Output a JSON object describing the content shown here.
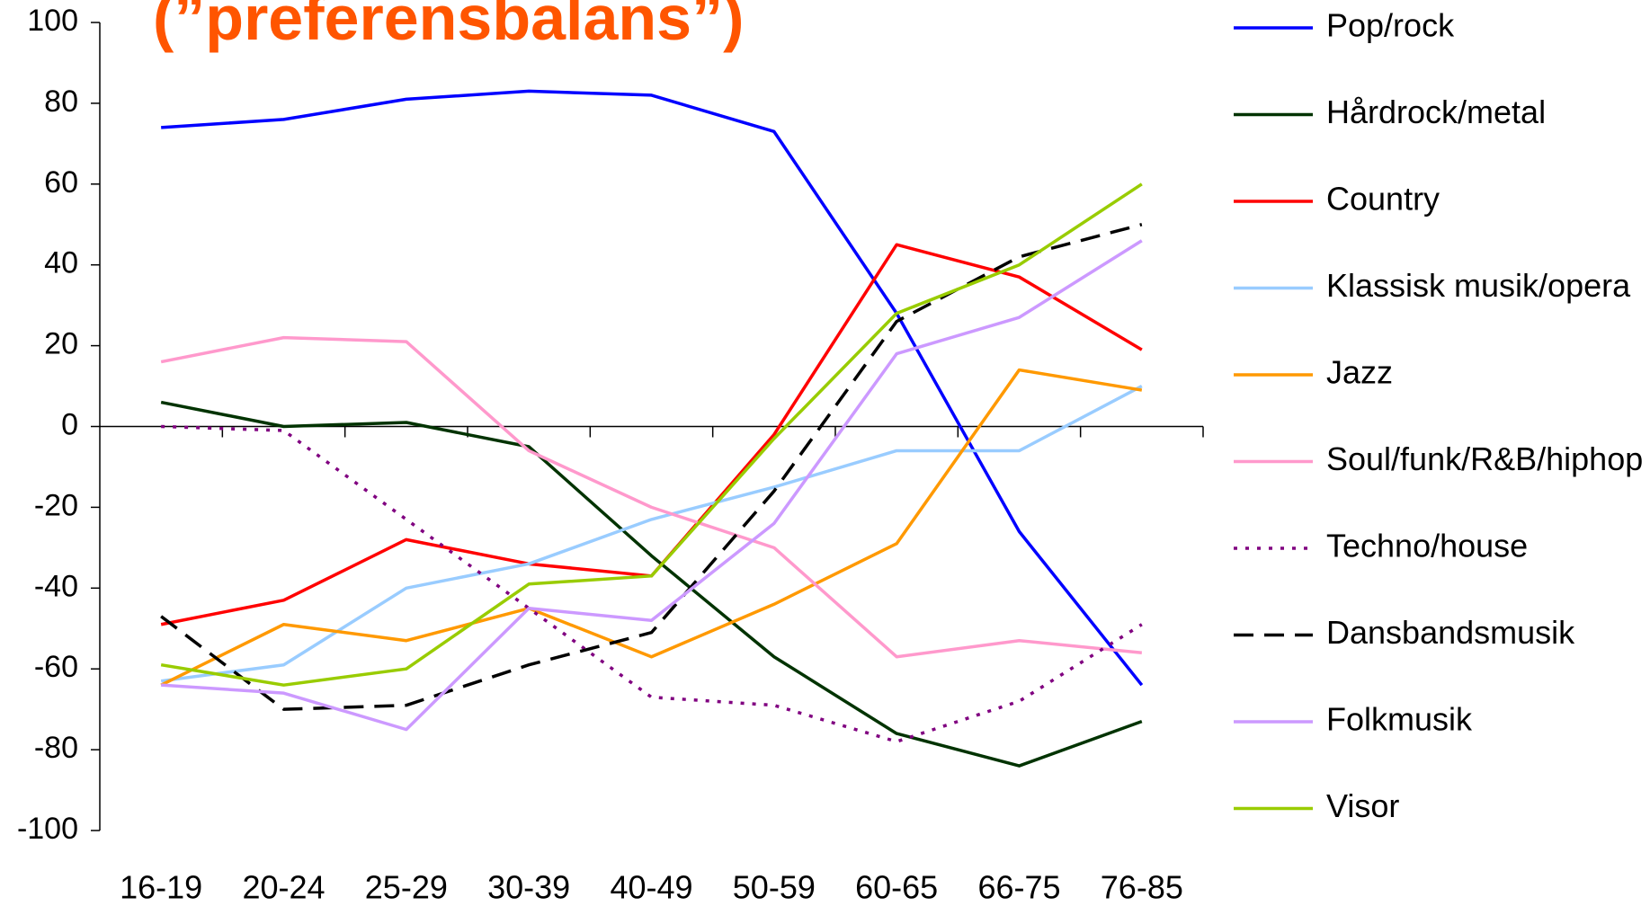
{
  "chart_data": {
    "type": "line",
    "title": "(”preferensbalans”)",
    "categories": [
      "16-19",
      "20-24",
      "25-29",
      "30-39",
      "40-49",
      "50-59",
      "60-65",
      "66-75",
      "76-85"
    ],
    "series": [
      {
        "name": "Pop/rock",
        "color": "#0000ff",
        "dash": "solid",
        "values": [
          74,
          76,
          81,
          83,
          82,
          73,
          28,
          -26,
          -64
        ]
      },
      {
        "name": "Hårdrock/metal",
        "color": "#003300",
        "dash": "solid",
        "values": [
          6,
          0,
          1,
          -5,
          -32,
          -57,
          -76,
          -84,
          -73
        ]
      },
      {
        "name": "Country",
        "color": "#ff0000",
        "dash": "solid",
        "values": [
          -49,
          -43,
          -28,
          -34,
          -37,
          -2,
          45,
          37,
          19
        ]
      },
      {
        "name": "Klassisk musik/opera",
        "color": "#99ccff",
        "dash": "solid",
        "values": [
          -63,
          -59,
          -40,
          -34,
          -23,
          -15,
          -6,
          -6,
          10
        ]
      },
      {
        "name": "Jazz",
        "color": "#ff9900",
        "dash": "solid",
        "values": [
          -64,
          -49,
          -53,
          -45,
          -57,
          -44,
          -29,
          14,
          9
        ]
      },
      {
        "name": "Soul/funk/R&B/hiphop",
        "color": "#ff99cc",
        "dash": "solid",
        "values": [
          16,
          22,
          21,
          -6,
          -20,
          -30,
          -57,
          -53,
          -56
        ]
      },
      {
        "name": "Techno/house",
        "color": "#800080",
        "dash": "dotted",
        "values": [
          0,
          -1,
          -23,
          -45,
          -67,
          -69,
          -78,
          -68,
          -49
        ]
      },
      {
        "name": "Dansbandsmusik",
        "color": "#000000",
        "dash": "dashed",
        "values": [
          -47,
          -70,
          -69,
          -59,
          -51,
          -16,
          26,
          42,
          50
        ]
      },
      {
        "name": "Folkmusik",
        "color": "#cc99ff",
        "dash": "solid",
        "values": [
          -64,
          -66,
          -75,
          -45,
          -48,
          -24,
          18,
          27,
          46
        ]
      },
      {
        "name": "Visor",
        "color": "#99cc00",
        "dash": "solid",
        "values": [
          -59,
          -64,
          -60,
          -39,
          -37,
          -3,
          28,
          40,
          60
        ]
      }
    ],
    "ylim": [
      -100,
      100
    ],
    "yticks": [
      -100,
      -80,
      -60,
      -40,
      -20,
      0,
      20,
      40,
      60,
      80,
      100
    ]
  }
}
